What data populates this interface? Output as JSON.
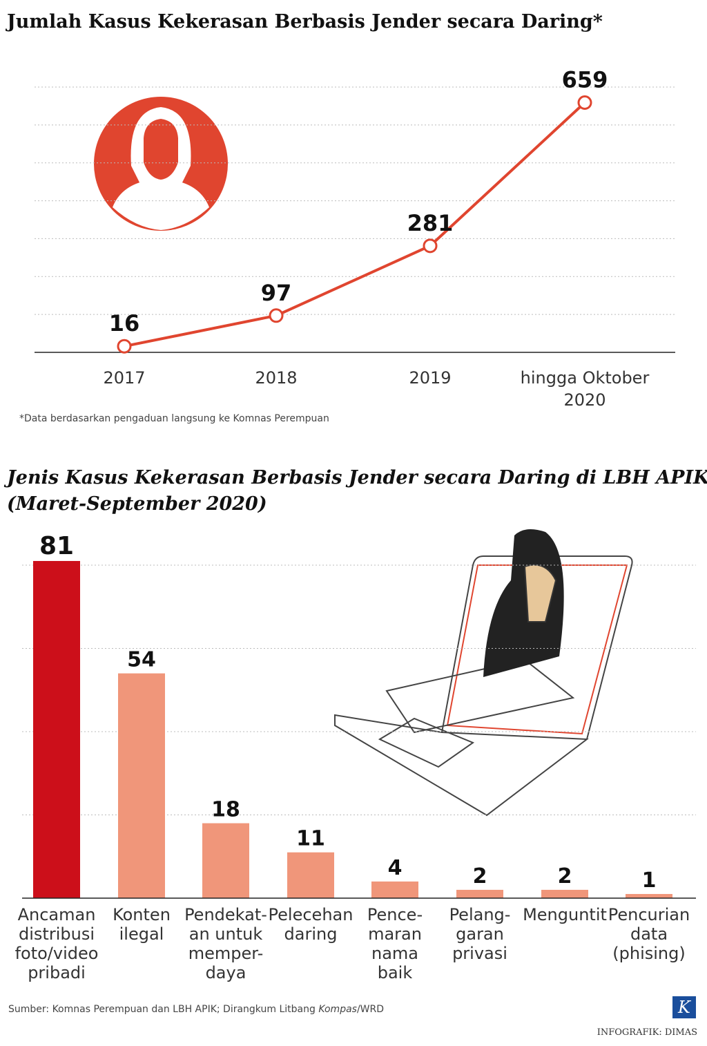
{
  "chart_data": [
    {
      "type": "line",
      "title": "Jumlah Kasus Kekerasan Berbasis Jender secara Daring*",
      "categories": [
        "2017",
        "2018",
        "2019",
        "hingga Oktober\n2020"
      ],
      "values": [
        16,
        97,
        281,
        659
      ],
      "color": "#e0452f",
      "ylim": [
        0,
        700
      ],
      "yticks": [
        100,
        200,
        300,
        400,
        500,
        600,
        700
      ],
      "grid": true,
      "note": "*Data berdasarkan pengaduan langsung ke Komnas Perempuan"
    },
    {
      "type": "bar",
      "title": "Jenis Kasus Kekerasan Berbasis Jender secara Daring di LBH APIK\n(Maret-September 2020)",
      "categories": [
        "Ancaman\ndistribusi\nfoto/video\npribadi",
        "Konten\nilegal",
        "Pendekat-\nan untuk\nmemper-\ndaya",
        "Pelecehan\ndaring",
        "Pence-\nmaran\nnama\nbaik",
        "Pelang-\ngaran\nprivasi",
        "Menguntit",
        "Pencurian\ndata\n(phising)"
      ],
      "values": [
        81,
        54,
        18,
        11,
        4,
        2,
        2,
        1
      ],
      "colors": [
        "#cc0f1a",
        "#f0967a",
        "#f0967a",
        "#f0967a",
        "#f0967a",
        "#f0967a",
        "#f0967a",
        "#f0967a"
      ],
      "ylim": [
        0,
        80
      ],
      "yticks": [
        20,
        40,
        60,
        80
      ],
      "grid": true
    }
  ],
  "footer": {
    "source": "Sumber: Komnas Perempuan dan LBH APIK; Dirangkum Litbang ",
    "source_italic": "Kompas",
    "source_end": "/WRD",
    "logo": "K",
    "credit": "INFOGRAFIK: DIMAS"
  }
}
